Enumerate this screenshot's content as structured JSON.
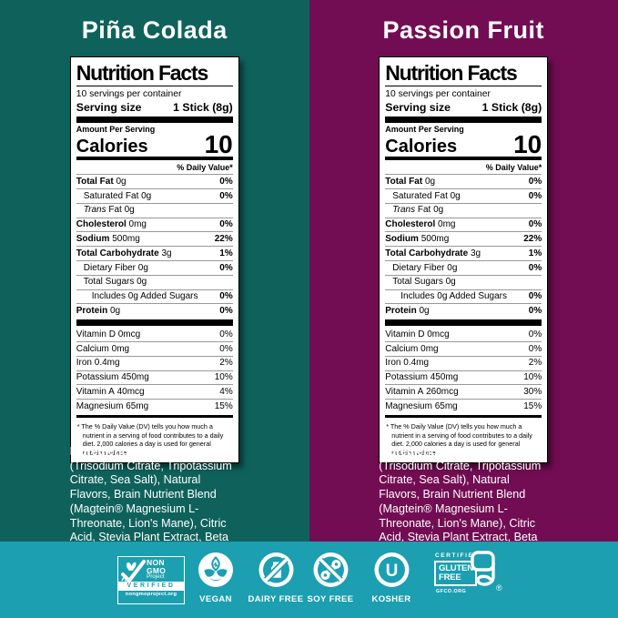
{
  "colors": {
    "left_bg": "#0f625c",
    "right_bg": "#730d53",
    "band_bg": "#1b9fb1",
    "label_bg": "#ffffff",
    "label_text": "#000000"
  },
  "panels": [
    {
      "flavor": "Piña Colada",
      "nutrition": {
        "title": "Nutrition Facts",
        "servings": "10 servings per container",
        "serving_size_label": "Serving size",
        "serving_size_value": "1 Stick (8g)",
        "amount_per_serving": "Amount Per Serving",
        "calories_label": "Calories",
        "calories_value": "10",
        "dv_header": "% Daily Value*",
        "main_rows": [
          {
            "name": "Total Fat",
            "rest": " 0g",
            "dv": "0%",
            "bold": true,
            "indent": 0
          },
          {
            "name": "Saturated Fat",
            "rest": " 0g",
            "dv": "0%",
            "indent": 1
          },
          {
            "name": "Trans",
            "rest": " Fat 0g",
            "dv": "",
            "italic": true,
            "indent": 1
          },
          {
            "name": "Cholesterol",
            "rest": " 0mg",
            "dv": "0%",
            "bold": true,
            "indent": 0
          },
          {
            "name": "Sodium",
            "rest": " 500mg",
            "dv": "22%",
            "bold": true,
            "indent": 0
          },
          {
            "name": "Total Carbohydrate",
            "rest": " 3g",
            "dv": "1%",
            "bold": true,
            "indent": 0
          },
          {
            "name": "Dietary Fiber",
            "rest": " 0g",
            "dv": "0%",
            "indent": 1
          },
          {
            "name": "Total Sugars",
            "rest": " 0g",
            "dv": "",
            "indent": 1
          },
          {
            "name": "Includes 0g Added Sugars",
            "rest": "",
            "dv": "0%",
            "indent": 2
          },
          {
            "name": "Protein",
            "rest": " 0g",
            "dv": "0%",
            "bold": true,
            "indent": 0
          }
        ],
        "vitamin_rows": [
          {
            "name": "Vitamin D",
            "rest": " 0mcg",
            "dv": "0%",
            "light_dv": true
          },
          {
            "name": "Calcium",
            "rest": " 0mg",
            "dv": "0%",
            "light_dv": true
          },
          {
            "name": "Iron",
            "rest": " 0.4mg",
            "dv": "2%",
            "light_dv": true
          },
          {
            "name": "Potassium",
            "rest": " 450mg",
            "dv": "10%",
            "light_dv": true
          },
          {
            "name": "Vitamin A",
            "rest": " 40mcg",
            "dv": "4%",
            "light_dv": true
          },
          {
            "name": "Magnesium",
            "rest": " 65mg",
            "dv": "15%",
            "light_dv": true
          }
        ],
        "footnote": "* The % Daily Value (DV) tells you how much a nutrient in a serving of food contributes to a daily diet. 2,000 calories a day is used for general nutrition advice."
      },
      "ingredients_label": "Ingredients:",
      "ingredients_text": "Hydration Blend (Trisodium Citrate, Tripotassium Citrate, Sea Salt), Natural Flavors, Brain Nutrient Blend (Magtein® Magnesium L-Threonate, Lion's Mane), Citric Acid, Stevia Plant Extract, Beta Carotene"
    },
    {
      "flavor": "Passion Fruit",
      "nutrition": {
        "title": "Nutrition Facts",
        "servings": "10 servings per container",
        "serving_size_label": "Serving size",
        "serving_size_value": "1 Stick (8g)",
        "amount_per_serving": "Amount Per Serving",
        "calories_label": "Calories",
        "calories_value": "10",
        "dv_header": "% Daily Value*",
        "main_rows": [
          {
            "name": "Total Fat",
            "rest": " 0g",
            "dv": "0%",
            "bold": true,
            "indent": 0
          },
          {
            "name": "Saturated Fat",
            "rest": " 0g",
            "dv": "0%",
            "indent": 1
          },
          {
            "name": "Trans",
            "rest": " Fat 0g",
            "dv": "",
            "italic": true,
            "indent": 1
          },
          {
            "name": "Cholesterol",
            "rest": " 0mg",
            "dv": "0%",
            "bold": true,
            "indent": 0
          },
          {
            "name": "Sodium",
            "rest": " 500mg",
            "dv": "22%",
            "bold": true,
            "indent": 0
          },
          {
            "name": "Total Carbohydrate",
            "rest": " 3g",
            "dv": "1%",
            "bold": true,
            "indent": 0
          },
          {
            "name": "Dietary Fiber",
            "rest": " 0g",
            "dv": "0%",
            "indent": 1
          },
          {
            "name": "Total Sugars",
            "rest": " 0g",
            "dv": "",
            "indent": 1
          },
          {
            "name": "Includes 0g Added Sugars",
            "rest": "",
            "dv": "0%",
            "indent": 2
          },
          {
            "name": "Protein",
            "rest": " 0g",
            "dv": "0%",
            "bold": true,
            "indent": 0
          }
        ],
        "vitamin_rows": [
          {
            "name": "Vitamin D",
            "rest": " 0mcg",
            "dv": "0%",
            "light_dv": true
          },
          {
            "name": "Calcium",
            "rest": " 0mg",
            "dv": "0%",
            "light_dv": true
          },
          {
            "name": "Iron",
            "rest": " 0.4mg",
            "dv": "2%",
            "light_dv": true
          },
          {
            "name": "Potassium",
            "rest": " 450mg",
            "dv": "10%",
            "light_dv": true
          },
          {
            "name": "Vitamin A",
            "rest": " 260mcg",
            "dv": "30%",
            "light_dv": true
          },
          {
            "name": "Magnesium",
            "rest": " 65mg",
            "dv": "15%",
            "light_dv": true
          }
        ],
        "footnote": "* The % Daily Value (DV) tells you how much a nutrient in a serving of food contributes to a daily diet. 2,000 calories a day is used for general nutrition advice."
      },
      "ingredients_label": "Ingredients:",
      "ingredients_text": "Hydration Blend (Trisodium Citrate, Tripotassium Citrate, Sea Salt), Natural Flavors, Brain Nutrient Blend (Magtein® Magnesium L-Threonate, Lion's Mane), Citric Acid, Stevia Plant Extract, Beta Carotene"
    }
  ],
  "certifications": {
    "non_gmo": {
      "line1": "NON",
      "line2": "GMO",
      "line3": "Project",
      "verified": "VERIFIED",
      "url": "nongmoproject.org"
    },
    "items": [
      {
        "label": "VEGAN",
        "icon": "vegan-leaf-icon"
      },
      {
        "label": "DAIRY FREE",
        "icon": "dairy-free-icon"
      },
      {
        "label": "SOY FREE",
        "icon": "soy-free-icon"
      },
      {
        "label": "KOSHER",
        "icon": "kosher-circle-u-icon"
      }
    ],
    "gluten_free": {
      "certified": "CERTIFIED",
      "word1": "GLUTEN",
      "word2": "FREE",
      "mark": "g",
      "registered": "®",
      "url": "GFCO.ORG"
    }
  }
}
